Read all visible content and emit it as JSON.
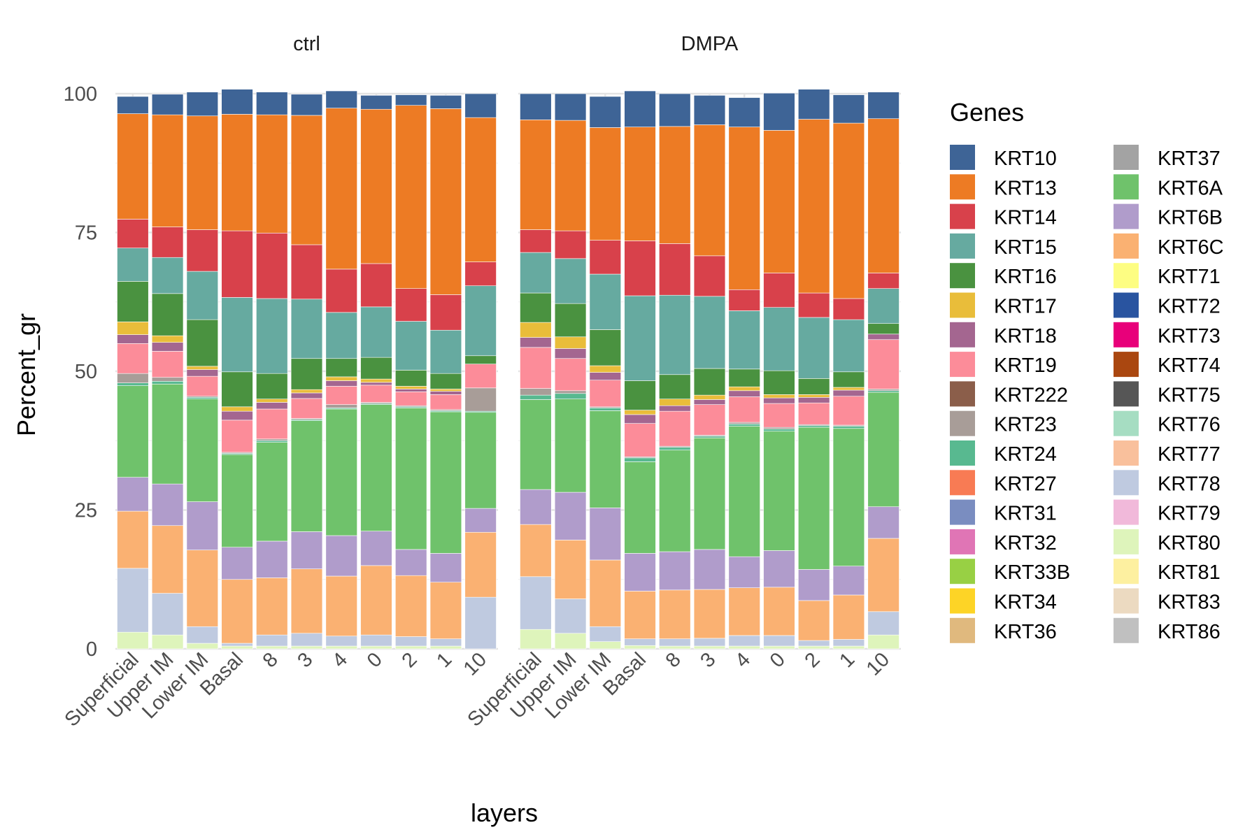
{
  "chart_data": {
    "type": "bar",
    "stacked": true,
    "xlabel": "layers",
    "ylabel": "Percent_gr",
    "ylim": [
      0,
      100
    ],
    "yticks": [
      0,
      25,
      50,
      75,
      100
    ],
    "grid": true,
    "legend_title": "Genes",
    "legend_placement": "right",
    "stack_order_bottom_to_top": [
      "KRT80",
      "KRT78",
      "KRT6C",
      "KRT6B",
      "KRT6A",
      "KRT24",
      "KRT23",
      "KRT19",
      "KRT18",
      "KRT17",
      "KRT16",
      "KRT15",
      "KRT14",
      "KRT13",
      "KRT10"
    ],
    "categories": [
      "Superficial",
      "Upper IM",
      "Lower IM",
      "Basal",
      "8",
      "3",
      "4",
      "0",
      "2",
      "1",
      "10"
    ],
    "panels": [
      {
        "title": "ctrl",
        "series": [
          {
            "name": "KRT80",
            "values": [
              3,
              2.5,
              1,
              0.5,
              0.5,
              0.5,
              0.5,
              0.5,
              0.5,
              0.5,
              0
            ]
          },
          {
            "name": "KRT78",
            "values": [
              11.5,
              7.5,
              3,
              0.5,
              2,
              2.3,
              1.8,
              2,
              1.7,
              1.3,
              9.3
            ]
          },
          {
            "name": "KRT6C",
            "values": [
              10.3,
              12.2,
              13.8,
              11.5,
              10.3,
              11.6,
              10.8,
              12.5,
              11,
              10.2,
              11.7
            ]
          },
          {
            "name": "KRT6B",
            "values": [
              6.1,
              7.5,
              8.7,
              5.8,
              6.6,
              6.7,
              7.3,
              6.2,
              4.7,
              5.2,
              4.3
            ]
          },
          {
            "name": "KRT6A",
            "values": [
              16.5,
              18,
              18.5,
              16.7,
              17.8,
              20,
              22.8,
              22.8,
              25.5,
              25.5,
              17.3
            ]
          },
          {
            "name": "KRT24",
            "values": [
              0.5,
              0.5,
              0.3,
              0.2,
              0.3,
              0.2,
              0.2,
              0.2,
              0.2,
              0.2,
              0.2
            ]
          },
          {
            "name": "KRT23",
            "values": [
              1.7,
              0.7,
              0.2,
              0.2,
              0.3,
              0.2,
              0.6,
              0.2,
              0.2,
              0.2,
              4.2
            ]
          },
          {
            "name": "KRT19",
            "values": [
              5.4,
              4.7,
              3.6,
              5.8,
              5.4,
              3.6,
              3.3,
              3.1,
              2.5,
              2.7,
              4.3
            ]
          },
          {
            "name": "KRT18",
            "values": [
              1.6,
              1.6,
              1.2,
              1.6,
              1.2,
              1,
              1,
              0.5,
              0.5,
              0.6,
              0
            ]
          },
          {
            "name": "KRT17",
            "values": [
              2.3,
              1.2,
              0.6,
              0.8,
              0.6,
              0.6,
              0.7,
              0.6,
              0.5,
              0.4,
              0
            ]
          },
          {
            "name": "KRT16",
            "values": [
              7.3,
              7.6,
              8.4,
              6.3,
              4.6,
              5.6,
              3.3,
              3.9,
              2.9,
              2.8,
              1.5
            ]
          },
          {
            "name": "KRT15",
            "values": [
              6,
              6.5,
              8.7,
              13.4,
              13.5,
              10.7,
              8.3,
              9.1,
              8.8,
              7.8,
              12.6
            ]
          },
          {
            "name": "KRT14",
            "values": [
              5.2,
              5.5,
              7.5,
              12,
              11.8,
              9.8,
              7.8,
              7.8,
              5.9,
              6.4,
              4.3
            ]
          },
          {
            "name": "KRT13",
            "values": [
              19,
              20.2,
              20.5,
              21,
              21.3,
              23.3,
              29,
              27.8,
              33,
              33.5,
              26
            ]
          },
          {
            "name": "KRT10",
            "values": [
              3.1,
              3.7,
              4.3,
              4.5,
              4.1,
              3.8,
              3.1,
              2.5,
              1.9,
              2.4,
              4.3
            ]
          }
        ]
      },
      {
        "title": "DMPA",
        "series": [
          {
            "name": "KRT80",
            "values": [
              3.5,
              2.8,
              1.3,
              0.6,
              0.5,
              0.5,
              0.5,
              0.5,
              0.5,
              0.5,
              2.5
            ]
          },
          {
            "name": "KRT78",
            "values": [
              9.5,
              6.2,
              2.7,
              1.2,
              1.3,
              1.4,
              1.9,
              1.9,
              1,
              1.2,
              4.2
            ]
          },
          {
            "name": "KRT6C",
            "values": [
              9.4,
              10.6,
              12,
              8.6,
              8.8,
              8.8,
              8.6,
              8.7,
              7.2,
              8,
              13.2
            ]
          },
          {
            "name": "KRT6B",
            "values": [
              6.3,
              8.6,
              9.4,
              6.8,
              6.9,
              7.2,
              5.6,
              6.6,
              5.6,
              5.2,
              5.7
            ]
          },
          {
            "name": "KRT6A",
            "values": [
              16.2,
              16.8,
              17.5,
              16.5,
              18.3,
              20.1,
              23.5,
              21.5,
              25.6,
              24.8,
              20.6
            ]
          },
          {
            "name": "KRT24",
            "values": [
              0.8,
              1,
              0.5,
              0.7,
              0.5,
              0.3,
              0.4,
              0.4,
              0.3,
              0.4,
              0.3
            ]
          },
          {
            "name": "KRT23",
            "values": [
              1.2,
              0.5,
              0.2,
              0.2,
              0.2,
              0.2,
              0.3,
              0.3,
              0.2,
              0.2,
              0.3
            ]
          },
          {
            "name": "KRT19",
            "values": [
              7.4,
              5.8,
              4.8,
              6,
              6.3,
              5.5,
              4.6,
              4.3,
              3.9,
              5.2,
              8.9
            ]
          },
          {
            "name": "KRT18",
            "values": [
              1.8,
              1.8,
              1.4,
              1.6,
              1,
              0.9,
              1.1,
              1,
              1,
              1.1,
              1
            ]
          },
          {
            "name": "KRT17",
            "values": [
              2.7,
              2.1,
              1.2,
              0.8,
              1.2,
              0.8,
              0.7,
              0.6,
              0.5,
              0.5,
              0
            ]
          },
          {
            "name": "KRT16",
            "values": [
              5.3,
              6,
              6.5,
              5.3,
              4.4,
              4.8,
              3.2,
              4.3,
              2.9,
              2.8,
              1.9
            ]
          },
          {
            "name": "KRT15",
            "values": [
              7.3,
              8.1,
              10,
              15.3,
              14.3,
              13,
              10.5,
              11.4,
              11,
              9.4,
              6.3
            ]
          },
          {
            "name": "KRT14",
            "values": [
              4.1,
              5,
              6.1,
              9.9,
              9.3,
              7.3,
              3.8,
              6.2,
              4.4,
              3.8,
              2.8
            ]
          },
          {
            "name": "KRT13",
            "values": [
              19.8,
              19.9,
              20.3,
              20.5,
              21.1,
              23.6,
              29.3,
              25.7,
              31.3,
              31.6,
              27.8
            ]
          },
          {
            "name": "KRT10",
            "values": [
              4.7,
              4.8,
              5.6,
              6.5,
              5.9,
              5.3,
              5.3,
              6.7,
              5.4,
              5.1,
              4.8
            ]
          }
        ]
      }
    ],
    "legend": {
      "columns": [
        [
          "KRT10",
          "KRT13",
          "KRT14",
          "KRT15",
          "KRT16",
          "KRT17",
          "KRT18",
          "KRT19",
          "KRT222",
          "KRT23",
          "KRT24",
          "KRT27",
          "KRT31",
          "KRT32",
          "KRT33B",
          "KRT34",
          "KRT36"
        ],
        [
          "KRT37",
          "KRT6A",
          "KRT6B",
          "KRT6C",
          "KRT71",
          "KRT72",
          "KRT73",
          "KRT74",
          "KRT75",
          "KRT76",
          "KRT77",
          "KRT78",
          "KRT79",
          "KRT80",
          "KRT81",
          "KRT83",
          "KRT86"
        ]
      ]
    },
    "colors": {
      "KRT10": "#3e6496",
      "KRT13": "#ed7b24",
      "KRT14": "#d8414b",
      "KRT15": "#66aaa0",
      "KRT16": "#4a9240",
      "KRT17": "#e9bd3a",
      "KRT18": "#a46690",
      "KRT19": "#fc8c99",
      "KRT222": "#8b5e4a",
      "KRT23": "#a89d98",
      "KRT24": "#58b990",
      "KRT27": "#f87b54",
      "KRT31": "#7a8dc0",
      "KRT32": "#e075b5",
      "KRT33B": "#98d044",
      "KRT34": "#fdd426",
      "KRT36": "#e0b97e",
      "KRT37": "#a3a3a3",
      "KRT6A": "#6fc26b",
      "KRT6B": "#b09ccb",
      "KRT6C": "#fab172",
      "KRT71": "#fdfd82",
      "KRT72": "#2954a0",
      "KRT73": "#e8007a",
      "KRT74": "#aa4710",
      "KRT75": "#565656",
      "KRT76": "#a6ddc2",
      "KRT77": "#f9c09c",
      "KRT78": "#bfcae0",
      "KRT79": "#f1b9da",
      "KRT80": "#def4bb",
      "KRT81": "#fdf0a0",
      "KRT83": "#ecdac1",
      "KRT86": "#c0c0c0"
    }
  }
}
